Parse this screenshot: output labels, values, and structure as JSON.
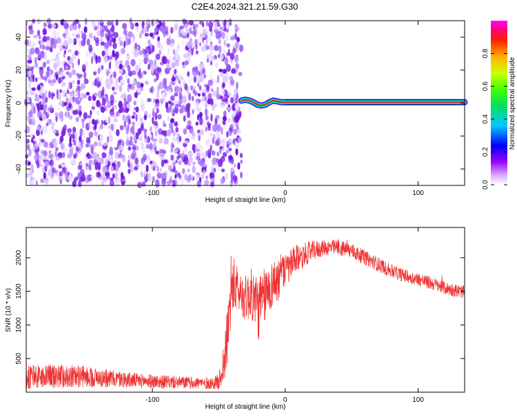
{
  "title": "C2E4.2024.321.21.59.G30",
  "chart_data": [
    {
      "type": "heatmap",
      "xlabel": "Height of straight line (km)",
      "ylabel": "Frequency (Hz)",
      "xlim": [
        -195,
        135
      ],
      "ylim": [
        -50,
        50
      ],
      "x_ticks": [
        -100,
        0,
        100
      ],
      "x_tick_labels": [
        "-100",
        "0",
        "100"
      ],
      "y_ticks": [
        -40,
        -20,
        0,
        20,
        40
      ],
      "y_tick_labels": [
        "-40",
        "-20",
        "0",
        "20",
        "40"
      ],
      "noise_region_x": [
        -195,
        -33
      ],
      "signal_ridge": [
        [
          -33,
          1.5
        ],
        [
          -30,
          2.0
        ],
        [
          -27,
          1.5
        ],
        [
          -24,
          0.5
        ],
        [
          -21,
          -1.0
        ],
        [
          -18,
          -1.5
        ],
        [
          -15,
          -1.0
        ],
        [
          -12,
          0.5
        ],
        [
          -9,
          1.5
        ],
        [
          -6,
          1.0
        ],
        [
          -3,
          0.5
        ],
        [
          0,
          0.5
        ],
        [
          20,
          0.5
        ],
        [
          60,
          0.5
        ],
        [
          100,
          0.5
        ],
        [
          135,
          0.5
        ]
      ],
      "colorbar": {
        "label": "Normalized spectral amplitude",
        "range": [
          0,
          1
        ],
        "ticks": [
          0.0,
          0.2,
          0.4,
          0.6,
          0.8
        ],
        "tick_labels": [
          "0.0",
          "0.2",
          "0.4",
          "0.6",
          "0.8"
        ]
      },
      "colors": {
        "noise": "#7a1fe6",
        "ridge_core": "#e02020"
      }
    },
    {
      "type": "line",
      "xlabel": "Height of straight line (km)",
      "ylabel": "SNR (10 * v/v)",
      "xlim": [
        -195,
        135
      ],
      "ylim": [
        0,
        2450
      ],
      "x_ticks": [
        -100,
        0,
        100
      ],
      "x_tick_labels": [
        "-100",
        "0",
        "100"
      ],
      "y_ticks": [
        500,
        1000,
        1500,
        2000
      ],
      "y_tick_labels": [
        "500",
        "1000",
        "1500",
        "2000"
      ],
      "series": [
        {
          "color": "#ee3333",
          "envelope": [
            [
              -195,
              220,
              180
            ],
            [
              -170,
              240,
              180
            ],
            [
              -150,
              230,
              160
            ],
            [
              -130,
              200,
              130
            ],
            [
              -110,
              170,
              110
            ],
            [
              -90,
              150,
              100
            ],
            [
              -70,
              140,
              90
            ],
            [
              -55,
              130,
              90
            ],
            [
              -50,
              150,
              120
            ],
            [
              -45,
              550,
              400
            ],
            [
              -40,
              1600,
              500
            ],
            [
              -35,
              1500,
              300
            ],
            [
              -30,
              1400,
              350
            ],
            [
              -25,
              1450,
              400
            ],
            [
              -20,
              1250,
              500
            ],
            [
              -15,
              1450,
              400
            ],
            [
              -10,
              1600,
              350
            ],
            [
              -5,
              1700,
              350
            ],
            [
              0,
              1800,
              250
            ],
            [
              5,
              1900,
              250
            ],
            [
              10,
              2000,
              200
            ],
            [
              20,
              2100,
              150
            ],
            [
              30,
              2150,
              120
            ],
            [
              40,
              2150,
              120
            ],
            [
              50,
              2100,
              120
            ],
            [
              60,
              2000,
              110
            ],
            [
              70,
              1900,
              110
            ],
            [
              80,
              1800,
              100
            ],
            [
              90,
              1730,
              100
            ],
            [
              100,
              1680,
              100
            ],
            [
              110,
              1620,
              100
            ],
            [
              120,
              1550,
              100
            ],
            [
              135,
              1480,
              100
            ]
          ]
        }
      ]
    }
  ]
}
